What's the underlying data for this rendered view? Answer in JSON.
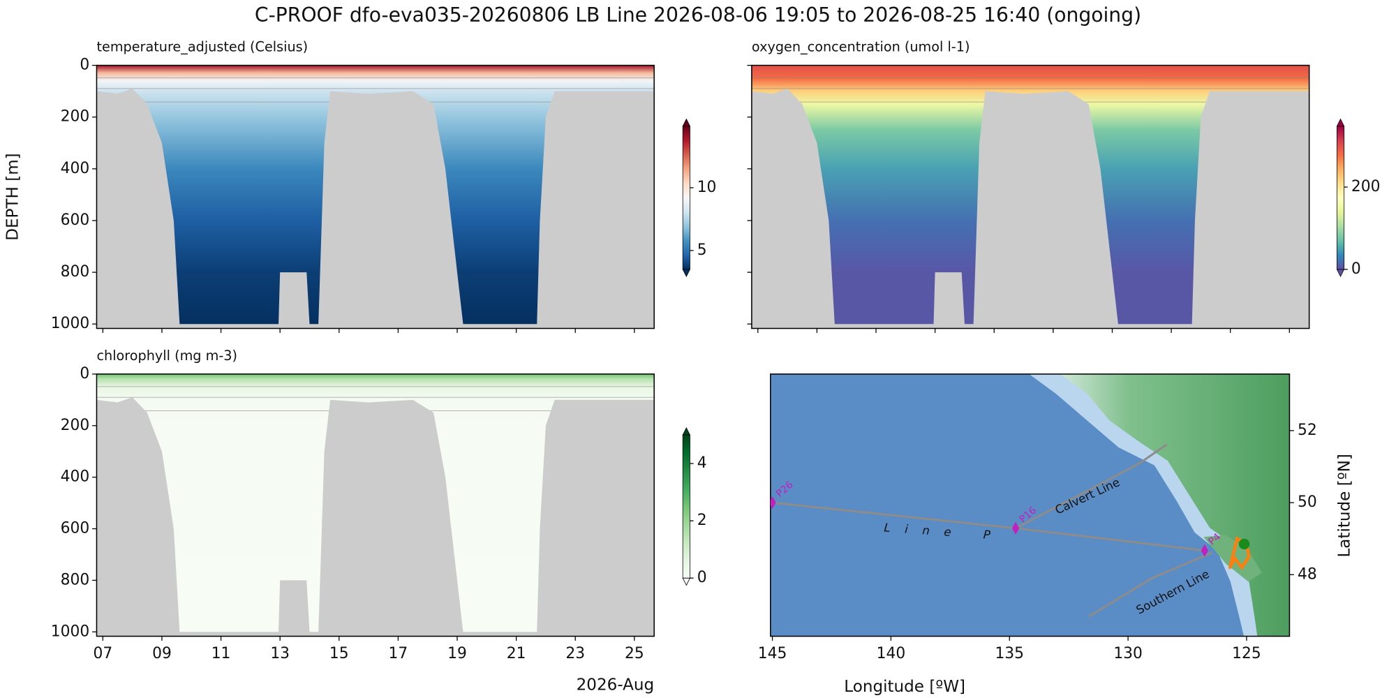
{
  "title": "C-PROOF dfo-eva035-20260806   LB Line   2026-08-06 19:05 to 2026-08-25 16:40 (ongoing)",
  "chart_data": [
    {
      "type": "section",
      "label": "temperature_adjusted (Celsius)",
      "ylabel": "DEPTH [m]",
      "xlim": [
        6.79,
        25.67
      ],
      "xticks": [
        7,
        9,
        11,
        13,
        15,
        17,
        19,
        21,
        23,
        25
      ],
      "xtick_labels": false,
      "ylim": [
        0,
        1017
      ],
      "yticks": [
        0,
        200,
        400,
        600,
        800,
        1000
      ],
      "ytick_labels": true,
      "profile": {
        "depth": [
          0,
          30,
          60,
          100,
          200,
          400,
          600,
          800,
          1000
        ],
        "values": [
          14,
          11,
          9,
          8,
          7,
          5.5,
          4.5,
          3.8,
          3.5
        ]
      },
      "max_depth": {
        "x": [
          6.79,
          7.5,
          8.0,
          8.5,
          9.0,
          9.4,
          9.6,
          12.95,
          13.0,
          13.9,
          14.0,
          14.3,
          14.5,
          14.7,
          16,
          17.5,
          18.2,
          18.6,
          19.0,
          19.2,
          21.7,
          21.8,
          22.0,
          22.3,
          25.67
        ],
        "values": [
          100,
          110,
          90,
          150,
          300,
          600,
          1000,
          1000,
          800,
          800,
          1000,
          1000,
          300,
          100,
          110,
          100,
          150,
          400,
          800,
          1000,
          1000,
          600,
          200,
          100,
          100
        ]
      },
      "colorbar": {
        "clim": [
          3.5,
          14.9
        ],
        "ticks": [
          5,
          10
        ],
        "colormap": [
          "#053061",
          "#2166ac",
          "#4393c3",
          "#92c5de",
          "#d1e5f0",
          "#f7f7f7",
          "#fddbc7",
          "#f4a582",
          "#d6604d",
          "#b2182b",
          "#67001f"
        ]
      }
    },
    {
      "type": "section",
      "label": "oxygen_concentration (umol l-1)",
      "xlim": [
        6.79,
        25.67
      ],
      "xticks": [
        7,
        9,
        11,
        13,
        15,
        17,
        19,
        21,
        23,
        25
      ],
      "xtick_labels": false,
      "ylim": [
        0,
        1017
      ],
      "yticks": [
        0,
        200,
        400,
        600,
        800,
        1000
      ],
      "ytick_labels": false,
      "profile": {
        "depth": [
          0,
          50,
          100,
          150,
          250,
          400,
          600,
          800,
          1000
        ],
        "values": [
          300,
          280,
          220,
          150,
          80,
          50,
          20,
          5,
          5
        ]
      },
      "max_depth": {
        "x": [
          6.79,
          7.5,
          8.0,
          8.5,
          9.0,
          9.4,
          9.6,
          12.95,
          13.0,
          13.9,
          14.0,
          14.3,
          14.5,
          14.7,
          16,
          17.5,
          18.2,
          18.6,
          19.0,
          19.2,
          21.7,
          21.8,
          22.0,
          22.3,
          25.67
        ],
        "values": [
          100,
          110,
          90,
          150,
          300,
          600,
          1000,
          1000,
          800,
          800,
          1000,
          1000,
          300,
          100,
          110,
          100,
          150,
          400,
          800,
          1000,
          1000,
          600,
          200,
          100,
          100
        ]
      },
      "colorbar": {
        "clim": [
          0,
          348
        ],
        "ticks": [
          0,
          200
        ],
        "colormap": [
          "#5e4fa2",
          "#3288bd",
          "#66c2a5",
          "#abdda4",
          "#e6f598",
          "#ffffbf",
          "#fee08b",
          "#fdae61",
          "#f46d43",
          "#d53e4f",
          "#9e0142"
        ]
      }
    },
    {
      "type": "section",
      "label": "chlorophyll (mg m-3)",
      "xlabel": "2026-Aug",
      "xlim": [
        6.79,
        25.67
      ],
      "xticks": [
        {
          "value": 7,
          "label": "07"
        },
        {
          "value": 9,
          "label": "09"
        },
        11,
        13,
        15,
        17,
        19,
        21,
        23,
        25
      ],
      "xtick_labels": true,
      "ylim": [
        0,
        1017
      ],
      "yticks": [
        0,
        200,
        400,
        600,
        800,
        1000
      ],
      "ytick_labels": true,
      "profile": {
        "depth": [
          0,
          20,
          50,
          100,
          200,
          1000
        ],
        "values": [
          2.5,
          1.5,
          0.5,
          0.1,
          0.05,
          0
        ]
      },
      "max_depth": {
        "x": [
          6.79,
          7.5,
          8.0,
          8.5,
          9.0,
          9.4,
          9.6,
          12.95,
          13.0,
          13.9,
          14.0,
          14.3,
          14.5,
          14.7,
          16,
          17.5,
          18.2,
          18.6,
          19.0,
          19.2,
          21.7,
          21.8,
          22.0,
          22.3,
          25.67
        ],
        "values": [
          100,
          110,
          90,
          150,
          300,
          600,
          1000,
          1000,
          800,
          800,
          1000,
          1000,
          300,
          100,
          110,
          100,
          150,
          400,
          800,
          1000,
          1000,
          600,
          200,
          100,
          100
        ]
      },
      "colorbar": {
        "clim": [
          0,
          5
        ],
        "ticks": [
          0,
          2,
          4
        ],
        "colormap": [
          "#f7fcf5",
          "#e5f5e0",
          "#c7e9c0",
          "#a1d99b",
          "#74c476",
          "#41ab5d",
          "#238b45",
          "#006d2c",
          "#00441b"
        ]
      }
    },
    {
      "type": "map",
      "xlabel": "Longitude [ºW]",
      "ylabel": "Latitude [ºN]",
      "xlim": [
        145.08,
        123.19
      ],
      "xticks": [
        145,
        140,
        135,
        130,
        125
      ],
      "ylim": [
        46.29,
        53.57
      ],
      "yticks": [
        48,
        50,
        52
      ],
      "tracks": [
        {
          "color": "#8c8c8c",
          "lon": [
            145,
            134.74,
            126.77
          ],
          "lat": [
            50.0,
            49.29,
            48.67
          ]
        },
        {
          "color": "#8c8c8c",
          "lon": [
            134.74,
            131.5,
            129.5,
            128.4
          ],
          "lat": [
            49.29,
            50.4,
            51.1,
            51.6
          ]
        },
        {
          "color": "#8c8c8c",
          "lon": [
            131.6,
            129.0,
            126.5
          ],
          "lat": [
            46.86,
            47.9,
            48.6
          ]
        }
      ],
      "glider_track": {
        "color": "#ff7f0e",
        "lon": [
          125.7,
          125.5,
          125.2,
          124.9,
          125.0,
          125.4,
          125.7
        ],
        "lat": [
          48.2,
          48.45,
          48.2,
          48.5,
          48.85,
          49.0,
          48.2
        ]
      },
      "position": {
        "color": "#1a8a1a",
        "lon": 125.1,
        "lat": 48.85
      },
      "station_color": "#c020c0",
      "stations": [
        {
          "name": "P26",
          "lon": 145,
          "lat": 50.0
        },
        {
          "name": "P16",
          "lon": 134.74,
          "lat": 49.29
        },
        {
          "name": "P4",
          "lon": 126.77,
          "lat": 48.67
        }
      ],
      "annotations": [
        {
          "text": "Line P",
          "lon": 137.75,
          "lat": 49.17
        },
        {
          "text": "Calvert Line",
          "lon": 131.7,
          "lat": 50.16
        },
        {
          "text": "Southern Line",
          "lon": 128.1,
          "lat": 47.5
        }
      ]
    }
  ]
}
